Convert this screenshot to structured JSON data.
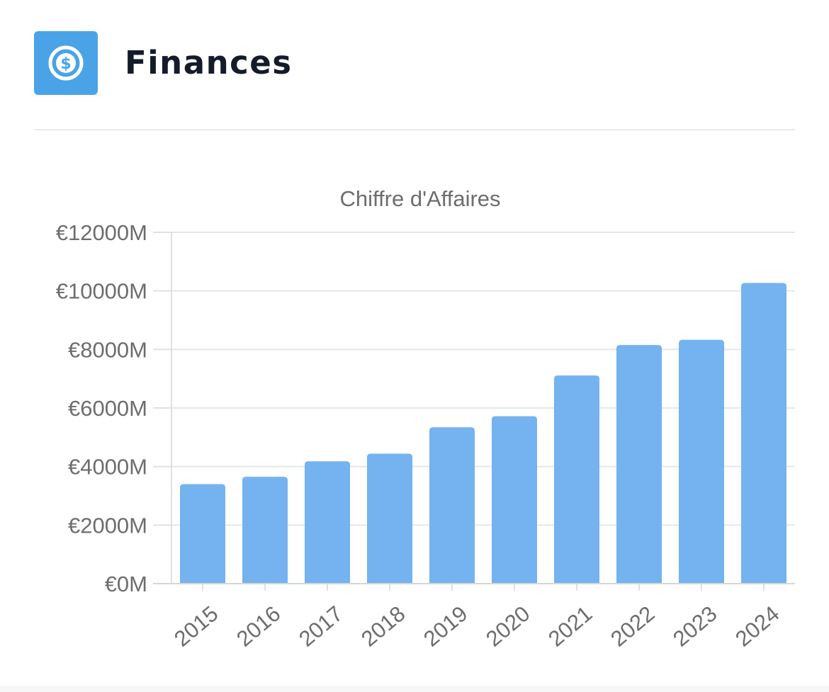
{
  "header": {
    "title": "Finances",
    "icon": "dollar-circle-icon",
    "icon_color": "#4aa3e6"
  },
  "chart_data": {
    "type": "bar",
    "title": "Chiffre d'Affaires",
    "xlabel": "",
    "ylabel": "",
    "categories": [
      "2015",
      "2016",
      "2017",
      "2018",
      "2019",
      "2020",
      "2021",
      "2022",
      "2023",
      "2024"
    ],
    "series": [
      {
        "values": [
          3400,
          3650,
          4180,
          4440,
          5340,
          5720,
          7110,
          8150,
          8330,
          10270
        ]
      }
    ],
    "ylim": [
      0,
      12000
    ],
    "yticks": [
      0,
      2000,
      4000,
      6000,
      8000,
      10000,
      12000
    ],
    "ytick_labels": [
      "€0M",
      "€2000M",
      "€4000M",
      "€6000M",
      "€8000M",
      "€10000M",
      "€12000M"
    ],
    "grid": true,
    "legend": "none",
    "bar_color": "#74b3ef"
  }
}
